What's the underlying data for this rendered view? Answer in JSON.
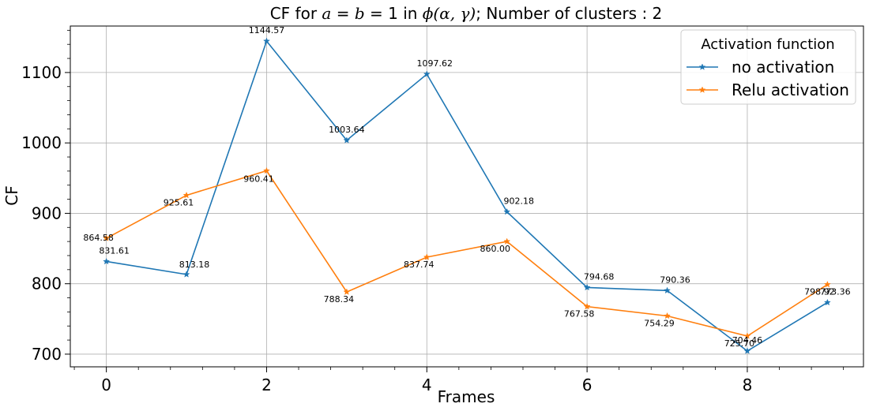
{
  "chart_data": {
    "type": "line",
    "title_parts": {
      "prefix": "CF for ",
      "math_ab": "a",
      "eq1": " = ",
      "math_b": "b",
      "eq2": " = 1 in ",
      "math_phi": "ϕ(α, γ)",
      "suffix": "; Number of clusters : 2"
    },
    "xlabel": "Frames",
    "ylabel": "CF",
    "x": [
      0,
      1,
      2,
      3,
      4,
      5,
      6,
      7,
      8,
      9
    ],
    "xlim": [
      -0.45,
      9.45
    ],
    "ylim": [
      682,
      1166
    ],
    "xticks": [
      0,
      2,
      4,
      6,
      8
    ],
    "yticks": [
      700,
      800,
      900,
      1000,
      1100
    ],
    "grid": true,
    "legend": {
      "title": "Activation function",
      "placement": "top-right"
    },
    "series": [
      {
        "name": "no activation",
        "color": "#1f77b4",
        "values": [
          831.61,
          813.18,
          1144.57,
          1003.64,
          1097.62,
          902.18,
          794.68,
          790.36,
          704.46,
          773.36
        ],
        "labels": [
          "831.61",
          "813.18",
          "1144.57",
          "1003.64",
          "1097.62",
          "902.18",
          "794.68",
          "790.36",
          "704.46",
          "773.36"
        ]
      },
      {
        "name": "Relu activation",
        "color": "#ff7f0e",
        "values": [
          864.58,
          925.61,
          960.41,
          788.34,
          837.74,
          860.0,
          767.58,
          754.29,
          725.7,
          798.92
        ],
        "labels": [
          "864.58",
          "925.61",
          "960.41",
          "788.34",
          "837.74",
          "860.00",
          "767.58",
          "754.29",
          "725.70",
          "798.92"
        ]
      }
    ]
  }
}
